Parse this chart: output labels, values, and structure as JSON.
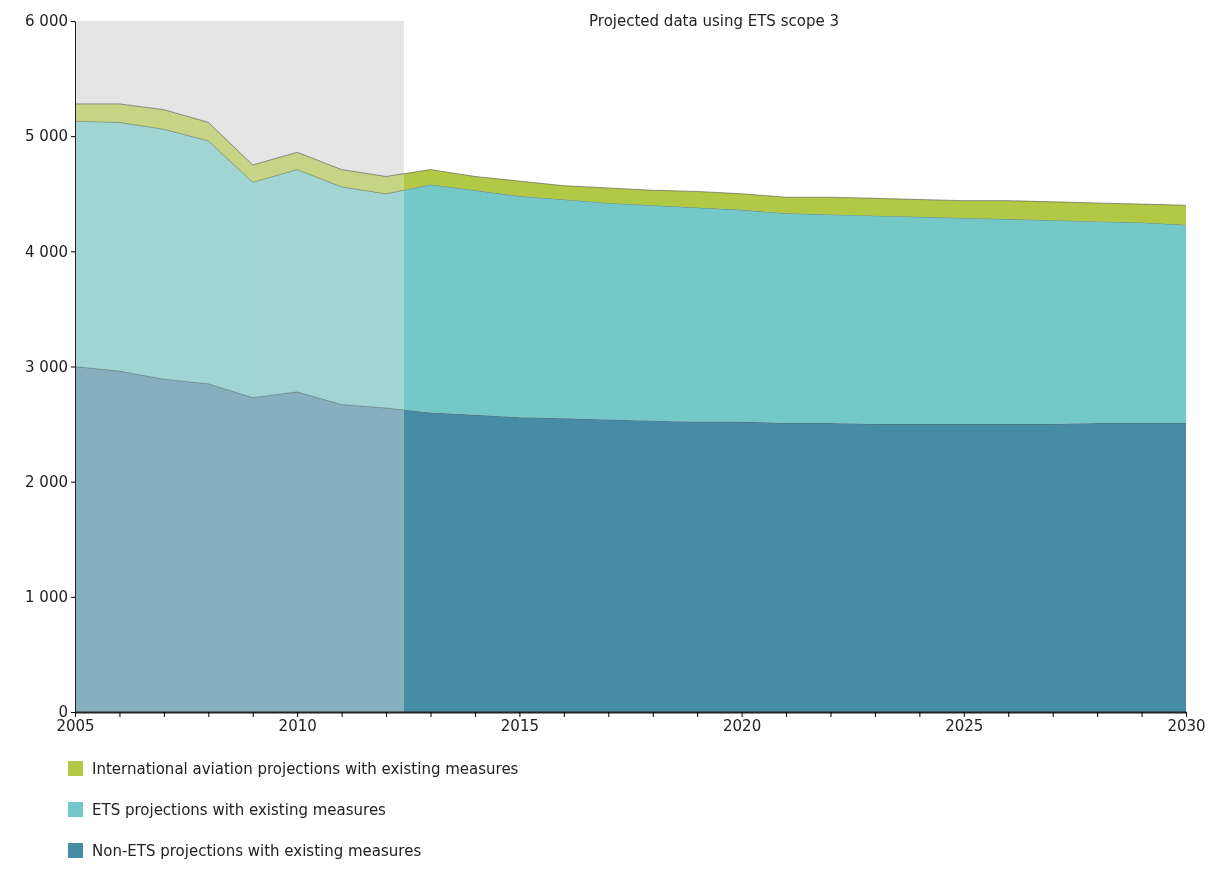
{
  "chart_data": {
    "type": "area",
    "stacked": true,
    "title": "Projected data using ETS scope 3",
    "x": [
      2005,
      2006,
      2007,
      2008,
      2009,
      2010,
      2011,
      2012,
      2013,
      2014,
      2015,
      2016,
      2017,
      2018,
      2019,
      2020,
      2021,
      2022,
      2023,
      2024,
      2025,
      2026,
      2027,
      2028,
      2029,
      2030
    ],
    "series": [
      {
        "name": "Non-ETS projections with existing measures",
        "color": "#468ca5",
        "values": [
          3000,
          2960,
          2890,
          2850,
          2730,
          2780,
          2670,
          2640,
          2600,
          2580,
          2560,
          2550,
          2540,
          2530,
          2520,
          2520,
          2510,
          2510,
          2500,
          2500,
          2500,
          2500,
          2500,
          2510,
          2510,
          2510
        ]
      },
      {
        "name": "ETS projections with existing measures",
        "color": "#74c9c8",
        "values": [
          2130,
          2160,
          2170,
          2110,
          1870,
          1930,
          1890,
          1860,
          1980,
          1950,
          1920,
          1900,
          1880,
          1870,
          1860,
          1840,
          1820,
          1810,
          1810,
          1800,
          1790,
          1780,
          1770,
          1750,
          1740,
          1720
        ]
      },
      {
        "name": "International aviation projections with existing measures",
        "color": "#b2c945",
        "values": [
          150,
          160,
          170,
          160,
          150,
          150,
          150,
          150,
          130,
          120,
          130,
          120,
          130,
          130,
          140,
          140,
          140,
          150,
          150,
          150,
          150,
          160,
          160,
          160,
          160,
          170
        ]
      }
    ],
    "xlim": [
      2005,
      2030
    ],
    "xticks": [
      2005,
      {
        "value": 2006,
        "label": null
      },
      {
        "value": 2007,
        "label": null
      },
      {
        "value": 2008,
        "label": null
      },
      {
        "value": 2009,
        "label": null
      },
      2010,
      {
        "value": 2011,
        "label": null
      },
      {
        "value": 2012,
        "label": null
      },
      {
        "value": 2013,
        "label": null
      },
      {
        "value": 2014,
        "label": null
      },
      2015,
      {
        "value": 2016,
        "label": null
      },
      {
        "value": 2017,
        "label": null
      },
      {
        "value": 2018,
        "label": null
      },
      {
        "value": 2019,
        "label": null
      },
      2020,
      {
        "value": 2021,
        "label": null
      },
      {
        "value": 2022,
        "label": null
      },
      {
        "value": 2023,
        "label": null
      },
      {
        "value": 2024,
        "label": null
      },
      2025,
      {
        "value": 2026,
        "label": null
      },
      {
        "value": 2027,
        "label": null
      },
      {
        "value": 2028,
        "label": null
      },
      {
        "value": 2029,
        "label": null
      },
      2030
    ],
    "ylim": [
      0,
      6000
    ],
    "yticks": [
      0,
      {
        "value": 1000,
        "label": "1 000"
      },
      {
        "value": 2000,
        "label": "2 000"
      },
      {
        "value": 3000,
        "label": "3 000"
      },
      {
        "value": 4000,
        "label": "4 000"
      },
      {
        "value": 5000,
        "label": "5 000"
      },
      {
        "value": 6000,
        "label": "6 000"
      }
    ],
    "bands": [
      {
        "axis": "x",
        "from": 2005,
        "to": 2012.4,
        "color": "#cccccc"
      }
    ],
    "grid": false,
    "legend": "bottom"
  }
}
